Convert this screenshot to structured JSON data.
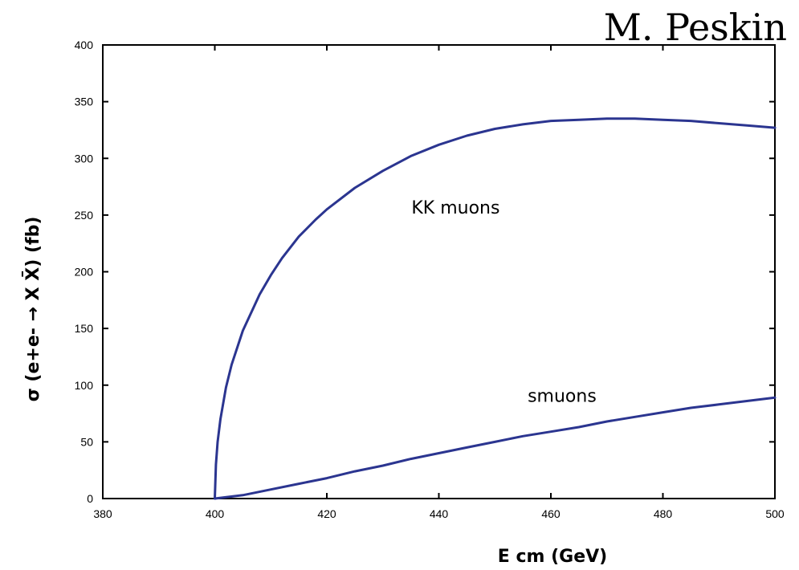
{
  "credit": "M. Peskin",
  "chart_data": {
    "type": "line",
    "title": "",
    "xlabel": "E cm   (GeV)",
    "ylabel": "σ  (e+e-  → X X̄)   (fb)",
    "xlim": [
      380,
      500
    ],
    "ylim": [
      0,
      400
    ],
    "xticks": [
      380,
      400,
      420,
      440,
      460,
      480,
      500
    ],
    "yticks": [
      0,
      50,
      100,
      150,
      200,
      250,
      300,
      350,
      400
    ],
    "grid": false,
    "legend": "none",
    "line_color": "#2b3590",
    "series": [
      {
        "name": "KK muons",
        "x": [
          400,
          400.2,
          400.5,
          401,
          402,
          403,
          405,
          408,
          410,
          412,
          415,
          418,
          420,
          425,
          430,
          435,
          440,
          445,
          450,
          455,
          460,
          465,
          470,
          475,
          480,
          485,
          490,
          495,
          500
        ],
        "values": [
          0,
          30,
          50,
          70,
          98,
          118,
          148,
          180,
          197,
          212,
          231,
          246,
          255,
          274,
          289,
          302,
          312,
          320,
          326,
          330,
          333,
          334,
          335,
          335,
          334,
          333,
          331,
          329,
          327
        ]
      },
      {
        "name": "smuons",
        "x": [
          400,
          405,
          410,
          415,
          420,
          425,
          430,
          435,
          440,
          445,
          450,
          455,
          460,
          465,
          470,
          475,
          480,
          485,
          490,
          495,
          500
        ],
        "values": [
          0,
          3,
          8,
          13,
          18,
          24,
          29,
          35,
          40,
          45,
          50,
          55,
          59,
          63,
          68,
          72,
          76,
          80,
          83,
          86,
          89
        ]
      }
    ],
    "annotations": [
      {
        "text": "KK muons",
        "x": 443,
        "y": 257
      },
      {
        "text": "smuons",
        "x": 462,
        "y": 91
      }
    ]
  }
}
